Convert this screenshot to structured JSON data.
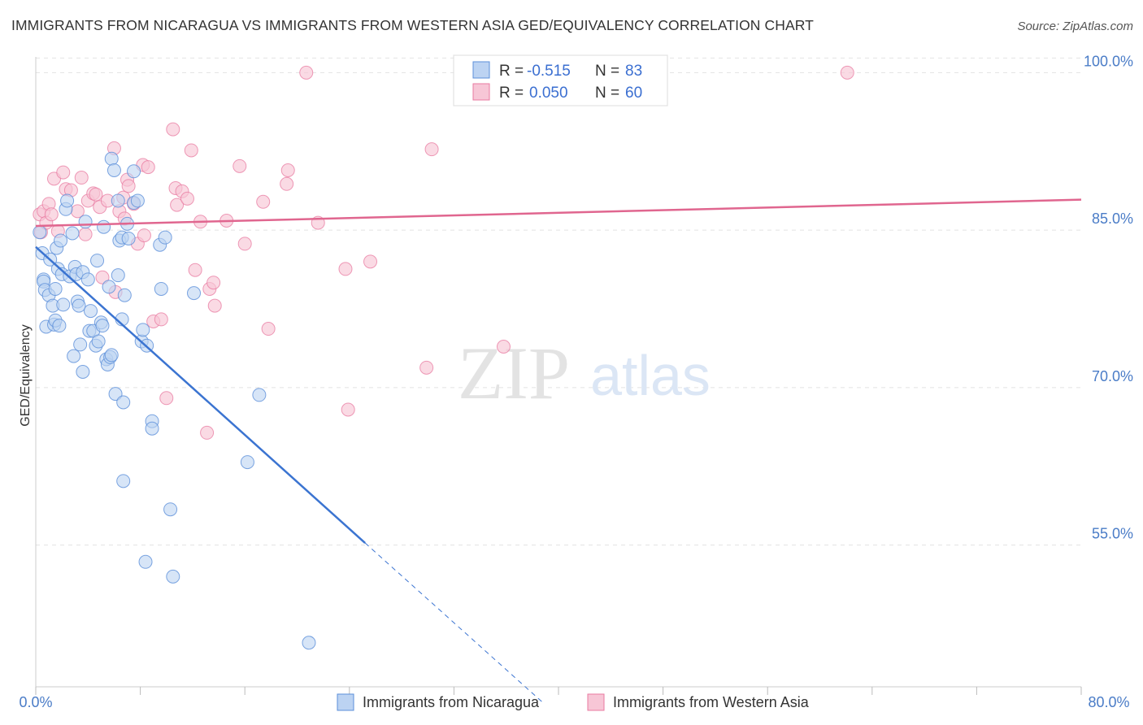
{
  "title": "IMMIGRANTS FROM NICARAGUA VS IMMIGRANTS FROM WESTERN ASIA GED/EQUIVALENCY CORRELATION CHART",
  "source": "Source: ZipAtlas.com",
  "watermark": {
    "zip": "ZIP",
    "atlas": "atlas"
  },
  "colors": {
    "blue": "#5b8fd9",
    "blue_fill": "#bcd3f2",
    "pink": "#e87aa0",
    "pink_fill": "#f7c6d6",
    "blue_line": "#3b74d1",
    "pink_line": "#e0668f",
    "tick_text": "#4a7cc7"
  },
  "chart_data": {
    "type": "scatter",
    "title": "IMMIGRANTS FROM NICARAGUA VS IMMIGRANTS FROM WESTERN ASIA GED/EQUIVALENCY CORRELATION CHART",
    "xlabel": "",
    "ylabel": "GED/Equivalency",
    "xlim": [
      0,
      80
    ],
    "ylim": [
      41.5,
      101.5
    ],
    "x_tick_labels": [
      "0.0%",
      "80.0%"
    ],
    "y_ticks": [
      55,
      70,
      85,
      100
    ],
    "y_tick_labels": [
      "55.0%",
      "70.0%",
      "85.0%",
      "100.0%"
    ],
    "grid": true,
    "legend": {
      "placement": "top-center",
      "entries": [
        {
          "r_label": "R =",
          "r_value": "-0.515",
          "n_label": "N =",
          "n_value": "83"
        },
        {
          "r_label": "R =",
          "r_value": "0.050",
          "n_label": "N =",
          "n_value": "60"
        }
      ]
    },
    "bottom_legend": [
      "Immigrants from Nicaragua",
      "Immigrants from Western Asia"
    ],
    "series": [
      {
        "name": "Immigrants from Nicaragua",
        "color": "#5b8fd9",
        "trend": {
          "x0": 0,
          "y0": 83.4,
          "x1": 25.2,
          "y1": 55.2,
          "dash_to_x": 38.8,
          "dash_to_y": 40.0
        },
        "points": [
          [
            0.3,
            84.8
          ],
          [
            0.5,
            82.8
          ],
          [
            0.6,
            80.3
          ],
          [
            0.6,
            80.1
          ],
          [
            0.7,
            79.3
          ],
          [
            0.8,
            75.8
          ],
          [
            1.0,
            78.8
          ],
          [
            1.1,
            82.2
          ],
          [
            1.3,
            77.8
          ],
          [
            1.4,
            76.0
          ],
          [
            1.5,
            76.4
          ],
          [
            1.5,
            79.4
          ],
          [
            1.6,
            83.3
          ],
          [
            1.7,
            81.3
          ],
          [
            1.8,
            75.9
          ],
          [
            1.9,
            84.0
          ],
          [
            2.0,
            80.8
          ],
          [
            2.1,
            77.9
          ],
          [
            2.3,
            87.0
          ],
          [
            2.4,
            87.8
          ],
          [
            2.6,
            80.6
          ],
          [
            2.8,
            84.7
          ],
          [
            2.9,
            73.0
          ],
          [
            3.0,
            81.5
          ],
          [
            3.1,
            80.8
          ],
          [
            3.2,
            78.2
          ],
          [
            3.3,
            77.8
          ],
          [
            3.4,
            74.1
          ],
          [
            3.6,
            71.5
          ],
          [
            3.6,
            81.0
          ],
          [
            3.8,
            85.8
          ],
          [
            4.0,
            80.3
          ],
          [
            4.1,
            75.4
          ],
          [
            4.2,
            77.3
          ],
          [
            4.4,
            75.4
          ],
          [
            4.6,
            74.0
          ],
          [
            4.7,
            82.1
          ],
          [
            4.8,
            74.4
          ],
          [
            5.0,
            76.2
          ],
          [
            5.1,
            75.9
          ],
          [
            5.2,
            85.3
          ],
          [
            5.4,
            72.7
          ],
          [
            5.5,
            72.2
          ],
          [
            5.6,
            79.6
          ],
          [
            5.7,
            72.9
          ],
          [
            5.8,
            73.1
          ],
          [
            5.8,
            91.8
          ],
          [
            6.0,
            90.7
          ],
          [
            6.1,
            69.4
          ],
          [
            6.3,
            87.8
          ],
          [
            6.3,
            80.7
          ],
          [
            6.4,
            84.0
          ],
          [
            6.6,
            84.3
          ],
          [
            6.6,
            76.5
          ],
          [
            6.7,
            68.6
          ],
          [
            6.7,
            61.1
          ],
          [
            6.8,
            78.8
          ],
          [
            7.0,
            85.6
          ],
          [
            7.1,
            84.2
          ],
          [
            7.5,
            87.6
          ],
          [
            7.5,
            90.6
          ],
          [
            7.8,
            87.8
          ],
          [
            8.1,
            74.4
          ],
          [
            8.2,
            75.5
          ],
          [
            8.4,
            53.4
          ],
          [
            8.5,
            74.0
          ],
          [
            8.9,
            66.8
          ],
          [
            8.9,
            66.1
          ],
          [
            9.5,
            83.6
          ],
          [
            9.6,
            79.4
          ],
          [
            9.9,
            84.3
          ],
          [
            10.3,
            58.4
          ],
          [
            10.5,
            52.0
          ],
          [
            12.1,
            79.0
          ],
          [
            16.2,
            62.9
          ],
          [
            17.1,
            69.3
          ],
          [
            20.9,
            45.7
          ]
        ]
      },
      {
        "name": "Immigrants from Western Asia",
        "color": "#e87aa0",
        "trend": {
          "x0": 0,
          "y0": 85.4,
          "x1": 80,
          "y1": 87.9
        },
        "points": [
          [
            0.3,
            86.5
          ],
          [
            0.4,
            84.8
          ],
          [
            0.6,
            86.8
          ],
          [
            0.8,
            85.7
          ],
          [
            1.0,
            87.5
          ],
          [
            1.2,
            86.5
          ],
          [
            1.4,
            89.9
          ],
          [
            1.7,
            84.9
          ],
          [
            2.1,
            90.5
          ],
          [
            2.3,
            88.9
          ],
          [
            2.7,
            88.8
          ],
          [
            3.2,
            86.8
          ],
          [
            3.5,
            90.0
          ],
          [
            3.8,
            84.6
          ],
          [
            4.0,
            87.8
          ],
          [
            4.4,
            88.5
          ],
          [
            4.6,
            88.4
          ],
          [
            4.9,
            87.2
          ],
          [
            5.1,
            80.5
          ],
          [
            5.5,
            87.8
          ],
          [
            6.0,
            92.8
          ],
          [
            6.1,
            79.1
          ],
          [
            6.4,
            86.8
          ],
          [
            6.7,
            88.1
          ],
          [
            6.8,
            86.1
          ],
          [
            7.0,
            89.8
          ],
          [
            7.1,
            89.2
          ],
          [
            7.5,
            87.5
          ],
          [
            7.8,
            83.7
          ],
          [
            8.2,
            91.2
          ],
          [
            8.3,
            84.5
          ],
          [
            8.6,
            91.0
          ],
          [
            9.0,
            76.3
          ],
          [
            9.6,
            76.5
          ],
          [
            10.0,
            69.0
          ],
          [
            10.5,
            94.6
          ],
          [
            10.7,
            89.0
          ],
          [
            10.8,
            87.4
          ],
          [
            11.2,
            88.7
          ],
          [
            11.6,
            88.0
          ],
          [
            11.9,
            92.6
          ],
          [
            12.2,
            81.2
          ],
          [
            12.6,
            85.8
          ],
          [
            13.1,
            65.7
          ],
          [
            13.3,
            79.4
          ],
          [
            13.6,
            80.0
          ],
          [
            13.7,
            77.8
          ],
          [
            14.6,
            85.9
          ],
          [
            15.6,
            91.1
          ],
          [
            16.0,
            83.7
          ],
          [
            17.4,
            87.7
          ],
          [
            17.8,
            75.6
          ],
          [
            19.2,
            89.4
          ],
          [
            19.3,
            90.7
          ],
          [
            20.7,
            100.0
          ],
          [
            21.6,
            85.7
          ],
          [
            23.7,
            81.3
          ],
          [
            23.9,
            67.9
          ],
          [
            25.6,
            82.0
          ],
          [
            29.9,
            71.9
          ],
          [
            30.3,
            92.7
          ],
          [
            35.8,
            73.9
          ],
          [
            44.6,
            100.0
          ],
          [
            62.1,
            100.0
          ]
        ]
      }
    ]
  }
}
